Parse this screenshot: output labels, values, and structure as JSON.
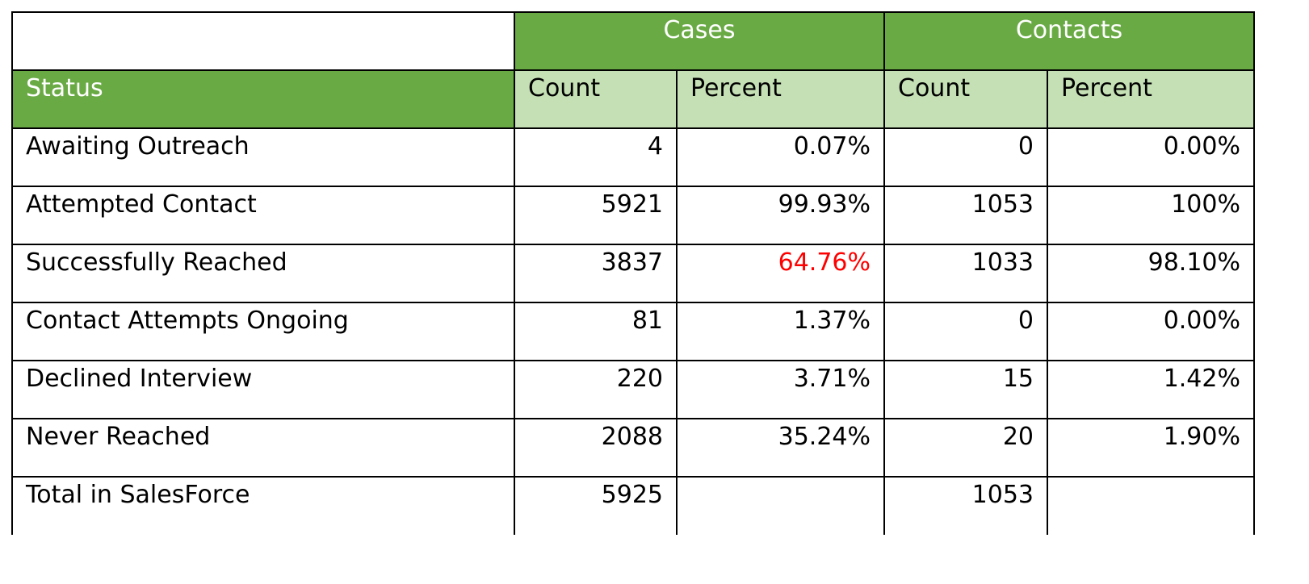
{
  "table": {
    "group_headers": {
      "cases": "Cases",
      "contacts": "Contacts"
    },
    "column_headers": {
      "status": "Status",
      "cases_count": "Count",
      "cases_percent": "Percent",
      "contacts_count": "Count",
      "contacts_percent": "Percent"
    },
    "rows": [
      {
        "status": "Awaiting Outreach",
        "cases_count": "4",
        "cases_percent": "0.07%",
        "contacts_count": "0",
        "contacts_percent": "0.00%"
      },
      {
        "status": "Attempted Contact",
        "cases_count": "5921",
        "cases_percent": "99.93%",
        "contacts_count": "1053",
        "contacts_percent": "100%"
      },
      {
        "status": "Successfully Reached",
        "cases_count": "3837",
        "cases_percent": "64.76%",
        "contacts_count": "1033",
        "contacts_percent": "98.10%"
      },
      {
        "status": "Contact Attempts Ongoing",
        "cases_count": "81",
        "cases_percent": "1.37%",
        "contacts_count": "0",
        "contacts_percent": "0.00%"
      },
      {
        "status": "Declined Interview",
        "cases_count": "220",
        "cases_percent": "3.71%",
        "contacts_count": "15",
        "contacts_percent": "1.42%"
      },
      {
        "status": "Never Reached",
        "cases_count": "2088",
        "cases_percent": "35.24%",
        "contacts_count": "20",
        "contacts_percent": "1.90%"
      },
      {
        "status": "Total in SalesForce",
        "cases_count": "5925",
        "cases_percent": "",
        "contacts_count": "1053",
        "contacts_percent": ""
      }
    ]
  },
  "colors": {
    "header_green": "#6aaa45",
    "subheader_light_green": "#c5e0b4",
    "highlight_red": "#ff0000"
  }
}
